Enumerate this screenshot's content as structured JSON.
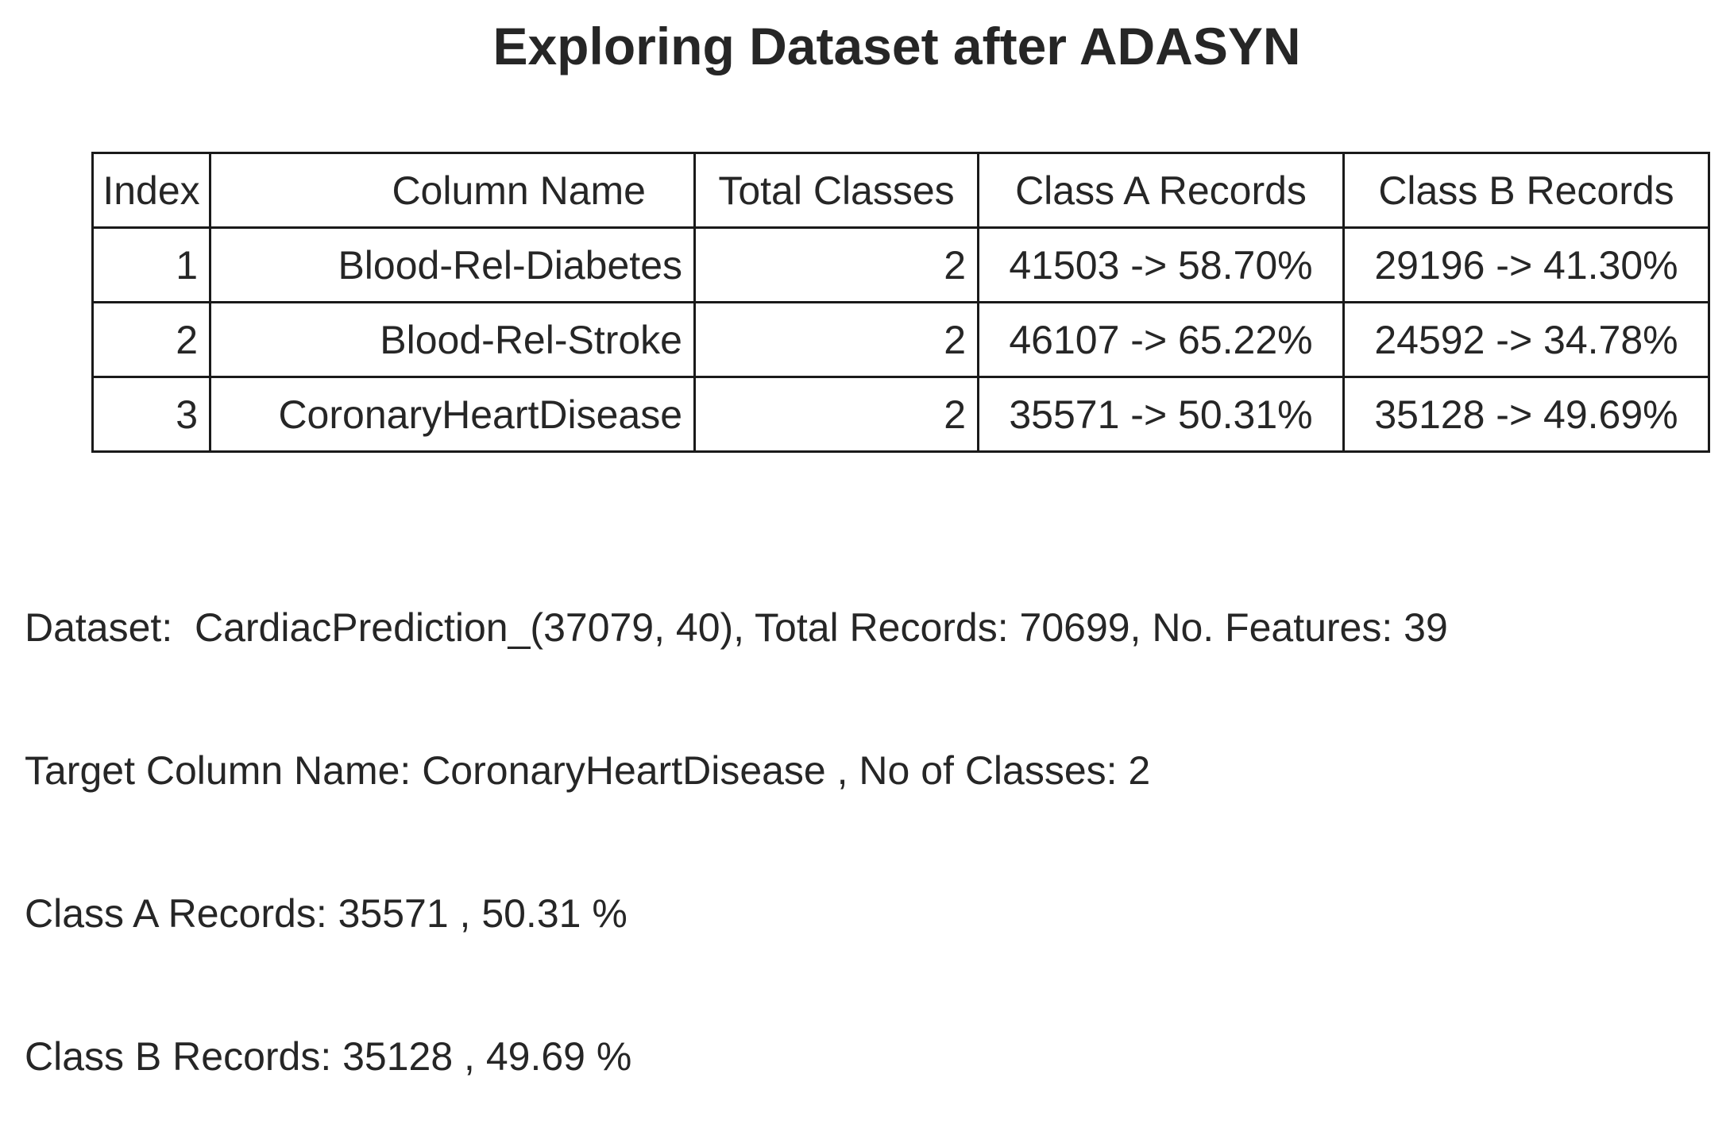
{
  "chart_data": {
    "type": "table",
    "title": "Exploring Dataset after ADASYN",
    "columns": [
      "Index",
      "Column Name",
      "Total Classes",
      "Class A Records",
      "Class B Records"
    ],
    "rows": [
      {
        "index": "1",
        "column_name": "Blood-Rel-Diabetes",
        "total_classes": "2",
        "class_a": "41503 -> 58.70%",
        "class_b": "29196 -> 41.30%"
      },
      {
        "index": "2",
        "column_name": "Blood-Rel-Stroke",
        "total_classes": "2",
        "class_a": "46107 -> 65.22%",
        "class_b": "24592 -> 34.78%"
      },
      {
        "index": "3",
        "column_name": "CoronaryHeartDisease",
        "total_classes": "2",
        "class_a": "35571 -> 50.31%",
        "class_b": "35128 -> 49.69%"
      }
    ],
    "values": {
      "class_a_counts": [
        41503,
        46107,
        35571
      ],
      "class_a_percent": [
        58.7,
        65.22,
        50.31
      ],
      "class_b_counts": [
        29196,
        24592,
        35128
      ],
      "class_b_percent": [
        41.3,
        34.78,
        49.69
      ]
    }
  },
  "summary": {
    "line1": "Dataset:  CardiacPrediction_(37079, 40), Total Records: 70699, No. Features: 39",
    "line2": "Target Column Name: CoronaryHeartDisease , No of Classes: 2",
    "line3": "Class A Records: 35571 , 50.31 %",
    "line4": "Class B Records: 35128 , 49.69 %"
  }
}
